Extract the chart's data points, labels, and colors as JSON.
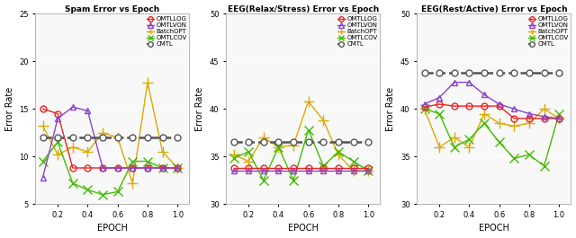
{
  "epochs": [
    0.1,
    0.2,
    0.3,
    0.4,
    0.5,
    0.6,
    0.7,
    0.8,
    0.9,
    1.0
  ],
  "subplot1": {
    "title": "Spam Error vs Epoch",
    "ylim": [
      5,
      25
    ],
    "yticks": [
      5,
      10,
      15,
      20,
      25
    ],
    "OMTLLOG": [
      15.0,
      14.5,
      8.8,
      8.8,
      8.8,
      8.8,
      8.8,
      8.8,
      8.8,
      8.8
    ],
    "OMTLVON": [
      7.8,
      14.0,
      15.2,
      14.8,
      8.8,
      8.8,
      8.8,
      8.8,
      8.8,
      8.8
    ],
    "BatchOPT": [
      13.2,
      10.2,
      11.0,
      10.5,
      12.5,
      12.0,
      7.2,
      17.8,
      10.5,
      8.8
    ],
    "OMTLCOV": [
      9.5,
      11.5,
      7.2,
      6.5,
      6.0,
      6.3,
      9.5,
      9.5,
      8.8,
      8.8
    ],
    "CMTL": [
      12.0,
      12.0,
      12.0,
      12.0,
      12.0,
      12.0,
      12.0,
      12.0,
      12.0,
      12.0
    ]
  },
  "subplot2": {
    "title": "EEG(Relax/Stress) Error vs Epoch",
    "ylim": [
      30,
      50
    ],
    "yticks": [
      30,
      35,
      40,
      45,
      50
    ],
    "OMTLLOG": [
      33.8,
      33.8,
      33.8,
      33.8,
      33.8,
      33.8,
      33.8,
      33.8,
      33.8,
      33.8
    ],
    "OMTLVON": [
      33.5,
      33.5,
      33.5,
      33.5,
      33.5,
      33.5,
      33.5,
      33.5,
      33.5,
      33.5
    ],
    "BatchOPT": [
      35.2,
      34.5,
      37.0,
      36.0,
      36.2,
      40.8,
      38.8,
      35.2,
      33.5,
      33.5
    ],
    "OMTLCOV": [
      34.8,
      35.5,
      32.5,
      36.0,
      32.5,
      37.8,
      34.0,
      35.5,
      34.5,
      33.5
    ],
    "CMTL": [
      36.5,
      36.5,
      36.5,
      36.5,
      36.5,
      36.5,
      36.5,
      36.5,
      36.5,
      36.5
    ]
  },
  "subplot3": {
    "title": "EEG(Rest/Active) Error vs Epoch",
    "ylim": [
      30,
      50
    ],
    "yticks": [
      30,
      35,
      40,
      45,
      50
    ],
    "OMTLLOG": [
      40.2,
      40.5,
      40.3,
      40.3,
      40.3,
      40.3,
      39.0,
      39.0,
      39.0,
      39.0
    ],
    "OMTLVON": [
      40.5,
      41.2,
      42.8,
      42.8,
      41.5,
      40.5,
      40.0,
      39.5,
      39.2,
      39.0
    ],
    "BatchOPT": [
      40.0,
      36.0,
      37.0,
      36.0,
      39.5,
      38.5,
      38.2,
      38.5,
      40.0,
      39.0
    ],
    "OMTLCOV": [
      40.0,
      39.5,
      36.0,
      36.8,
      38.5,
      36.5,
      34.8,
      35.2,
      34.0,
      39.5
    ],
    "CMTL": [
      43.8,
      43.8,
      43.8,
      43.8,
      43.8,
      43.8,
      43.8,
      43.8,
      43.8,
      43.8
    ]
  },
  "colors": {
    "OMTLLOG": "#ee2222",
    "OMTLVON": "#8844cc",
    "BatchOPT": "#ddaa00",
    "OMTLCOV": "#44bb00",
    "CMTL": "#555555"
  },
  "markers": {
    "OMTLLOG": "o",
    "OMTLVON": "^",
    "BatchOPT": "+",
    "OMTLCOV": "x",
    "CMTL": "o"
  },
  "series_names": [
    "OMTLLOG",
    "OMTLVON",
    "BatchOPT",
    "OMTLCOV",
    "CMTL"
  ],
  "xlabel": "EPOCH",
  "ylabel": "Error Rate",
  "xticks": [
    0.2,
    0.4,
    0.6,
    0.8,
    1.0
  ],
  "bg_color": "#f8f8f8"
}
